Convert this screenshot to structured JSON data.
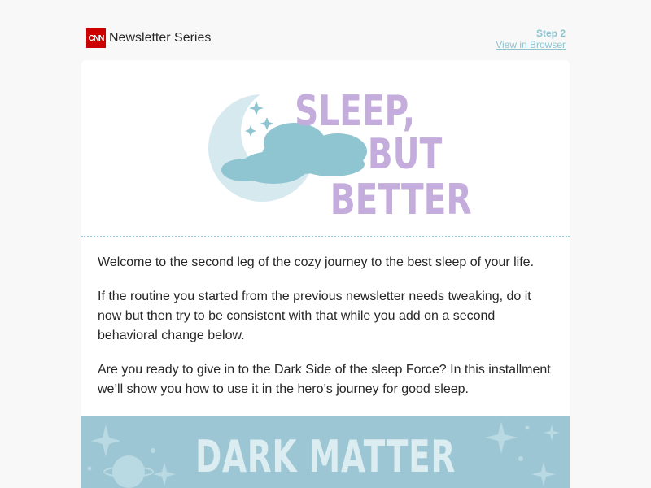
{
  "header": {
    "logo_text": "CNN",
    "series_title": "Newsletter Series",
    "step_label": "Step 2",
    "view_in_browser": "View in Browser"
  },
  "hero": {
    "title_lines": [
      "SLEEP,",
      "BUT",
      "BETTER"
    ],
    "title_color": "#c4acdc",
    "moon_color": "#d5e9ef",
    "cloud_color": "#8fc4d1"
  },
  "body": {
    "paragraphs": [
      "Welcome to the second leg of the cozy journey to the best sleep of your life.",
      "If the routine you started from the previous newsletter needs tweaking, do it now but then try to be consistent with that while you add on a second behavioral change below.",
      "Are you ready to give in to the Dark Side of the sleep Force? In this installment we’ll show you how to use it in the hero’s journey for good sleep."
    ]
  },
  "banner": {
    "title": "DARK MATTER",
    "background": "#9cc6d3"
  },
  "colors": {
    "accent": "#8ec4d0",
    "brand": "#cc0000",
    "page_background": "#f8f8f8"
  }
}
